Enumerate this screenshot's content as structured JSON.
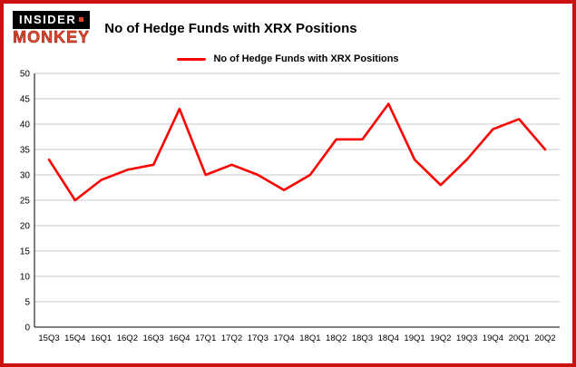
{
  "brand": {
    "line1": "INSIDER",
    "line2": "MONKEY"
  },
  "title": "No of Hedge Funds with XRX Positions",
  "legend": "No of Hedge Funds with XRX Positions",
  "colors": {
    "line": "#ff0000",
    "border": "#cc1111",
    "grid": "#c8c8c8",
    "axis": "#000000",
    "text": "#000000"
  },
  "chart_data": {
    "type": "line",
    "title": "No of Hedge Funds with XRX Positions",
    "categories": [
      "15Q3",
      "15Q4",
      "16Q1",
      "16Q2",
      "16Q3",
      "16Q4",
      "17Q1",
      "17Q2",
      "17Q3",
      "17Q4",
      "18Q1",
      "18Q2",
      "18Q3",
      "18Q4",
      "19Q1",
      "19Q2",
      "19Q3",
      "19Q4",
      "20Q1",
      "20Q2"
    ],
    "values": [
      33,
      25,
      29,
      31,
      32,
      43,
      30,
      32,
      30,
      27,
      30,
      37,
      37,
      44,
      33,
      28,
      33,
      39,
      41,
      35
    ],
    "xlabel": "",
    "ylabel": "",
    "ylim": [
      0,
      50
    ],
    "yticks": [
      0,
      5,
      10,
      15,
      20,
      25,
      30,
      35,
      40,
      45,
      50
    ],
    "grid": "horizontal",
    "legend_position": "top",
    "series_color": "#ff0000"
  }
}
